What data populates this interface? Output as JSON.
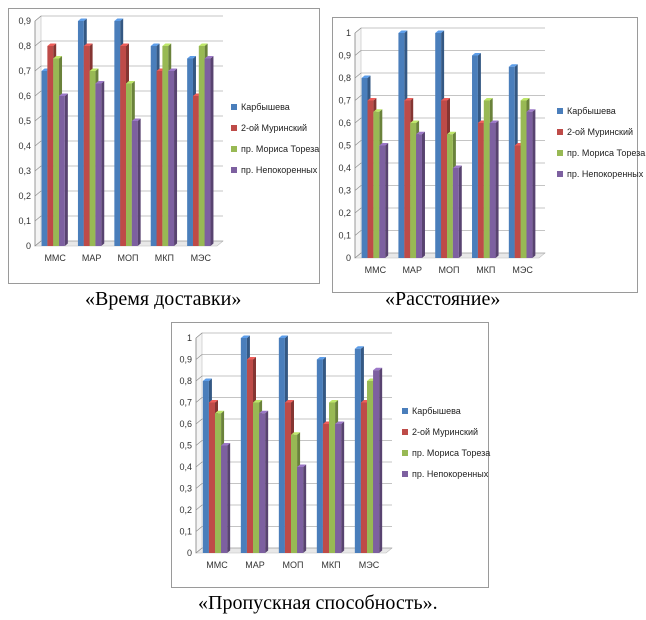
{
  "series_names": [
    "Карбышева",
    "2-ой Муринский",
    "пр. Мориса Тореза",
    "пр. Непокоренных"
  ],
  "colors": [
    "#4a7ebb",
    "#be4b48",
    "#98b954",
    "#7d60a0"
  ],
  "chart_data": [
    {
      "type": "bar",
      "caption": "«Время доставки»",
      "categories": [
        "ММС",
        "МАР",
        "МОП",
        "МКП",
        "МЭС"
      ],
      "ylim": [
        0,
        0.9
      ],
      "yticks": [
        "0",
        "0,1",
        "0,2",
        "0,3",
        "0,4",
        "0,5",
        "0,6",
        "0,7",
        "0,8",
        "0,9"
      ],
      "grid": true,
      "legend": "right",
      "series": [
        {
          "name": "Карбышева",
          "values": [
            0.7,
            0.9,
            0.9,
            0.8,
            0.75
          ]
        },
        {
          "name": "2-ой Муринский",
          "values": [
            0.8,
            0.8,
            0.8,
            0.7,
            0.6
          ]
        },
        {
          "name": "пр. Мориса Тореза",
          "values": [
            0.75,
            0.7,
            0.65,
            0.8,
            0.8
          ]
        },
        {
          "name": "пр. Непокоренных",
          "values": [
            0.6,
            0.65,
            0.5,
            0.7,
            0.75
          ]
        }
      ]
    },
    {
      "type": "bar",
      "caption": "«Расстояние»",
      "categories": [
        "ММС",
        "МАР",
        "МОП",
        "МКП",
        "МЭС"
      ],
      "ylim": [
        0,
        1
      ],
      "yticks": [
        "0",
        "0,1",
        "0,2",
        "0,3",
        "0,4",
        "0,5",
        "0,6",
        "0,7",
        "0,8",
        "0,9",
        "1"
      ],
      "grid": true,
      "legend": "right",
      "series": [
        {
          "name": "Карбышева",
          "values": [
            0.8,
            1.0,
            1.0,
            0.9,
            0.85
          ]
        },
        {
          "name": "2-ой Муринский",
          "values": [
            0.7,
            0.7,
            0.7,
            0.6,
            0.5
          ]
        },
        {
          "name": "пр. Мориса Тореза",
          "values": [
            0.65,
            0.6,
            0.55,
            0.7,
            0.7
          ]
        },
        {
          "name": "пр. Непокоренных",
          "values": [
            0.5,
            0.55,
            0.4,
            0.6,
            0.65
          ]
        }
      ]
    },
    {
      "type": "bar",
      "caption": "«Пропускная способность».",
      "categories": [
        "ММС",
        "МАР",
        "МОП",
        "МКП",
        "МЭС"
      ],
      "ylim": [
        0,
        1
      ],
      "yticks": [
        "0",
        "0,1",
        "0,2",
        "0,3",
        "0,4",
        "0,5",
        "0,6",
        "0,7",
        "0,8",
        "0,9",
        "1"
      ],
      "grid": true,
      "legend": "right",
      "series": [
        {
          "name": "Карбышева",
          "values": [
            0.8,
            1.0,
            1.0,
            0.9,
            0.95
          ]
        },
        {
          "name": "2-ой Муринский",
          "values": [
            0.7,
            0.9,
            0.7,
            0.6,
            0.7
          ]
        },
        {
          "name": "пр. Мориса Тореза",
          "values": [
            0.65,
            0.7,
            0.55,
            0.7,
            0.8
          ]
        },
        {
          "name": "пр. Непокоренных",
          "values": [
            0.5,
            0.65,
            0.4,
            0.6,
            0.85
          ]
        }
      ]
    }
  ]
}
